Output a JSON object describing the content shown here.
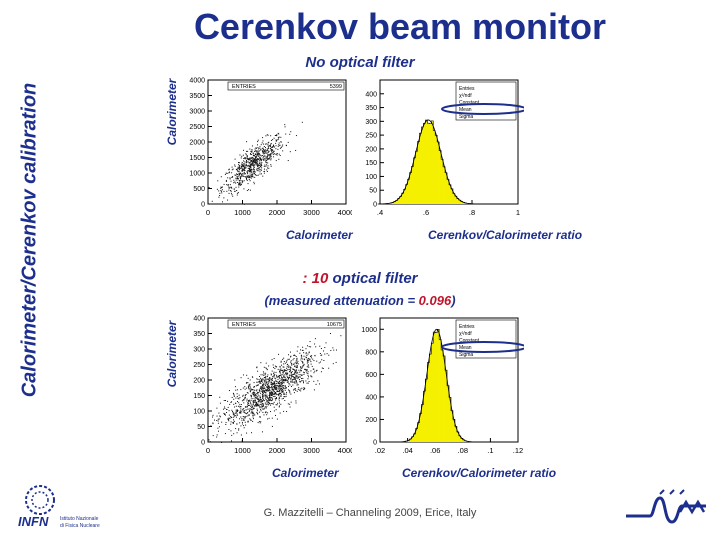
{
  "title": "Cerenkov beam monitor",
  "side_title": "Calorimeter/Cerenkov calibration",
  "top_section": {
    "title": "No optical filter",
    "ylabel": "Calorimeter",
    "xlabel_left": "Calorimeter",
    "xlabel_right": "Cerenkov/Calorimeter ratio",
    "scatter_box": {
      "entries_label": "ENTRIES",
      "entries_value": "5399"
    },
    "hist_box": [
      "Entries",
      "χ²/ndf",
      "Constant",
      "Mean",
      "Sigma"
    ]
  },
  "bottom_section": {
    "title_prefix": ": 10",
    "title_rest": " optical filter",
    "measured_prefix": "(measured attenuation = ",
    "measured_value": "0.096",
    "measured_suffix": ")",
    "ylabel": "Calorimeter",
    "xlabel_left": "Calorimeter",
    "xlabel_right": "Cerenkov/Calorimeter ratio",
    "scatter_box": {
      "entries_label": "ENTRIES",
      "entries_value": "10675"
    },
    "hist_box": [
      "Entries",
      "χ²/ndf",
      "Constant",
      "Mean",
      "Sigma"
    ]
  },
  "footer": "G. Mazzitelli – Channeling 2009, Erice, Italy",
  "logo": {
    "name": "INFN",
    "line1": "Istituto Nazionale",
    "line2": "di Fisica Nucleare"
  },
  "colors": {
    "title": "#1d2f8c",
    "accent_red": "#c0142b",
    "hist_fill": "#f5f000"
  },
  "chart_data": [
    {
      "type": "scatter",
      "section": "top",
      "xlim": [
        0,
        4000
      ],
      "ylim": [
        0,
        4000
      ],
      "xticks": [
        0,
        1000,
        2000,
        3000,
        4000
      ],
      "yticks": [
        0,
        500,
        1000,
        1500,
        2000,
        2500,
        3000,
        3500,
        4000
      ],
      "cluster_center": [
        1300,
        1300
      ],
      "cluster_spread": [
        450,
        450
      ],
      "points": 700,
      "stat_box_entries": "5399"
    },
    {
      "type": "bar",
      "section": "top",
      "xlim": [
        0.4,
        1.0
      ],
      "ylim": [
        0,
        450
      ],
      "xticks": [
        0.4,
        0.6,
        0.8,
        1.0
      ],
      "yticks": [
        0,
        50,
        100,
        150,
        200,
        250,
        300,
        350,
        400
      ],
      "gauss_mean": 0.61,
      "gauss_sigma": 0.055,
      "gauss_peak": 305
    },
    {
      "type": "scatter",
      "section": "bottom",
      "xlim": [
        0,
        4000
      ],
      "ylim": [
        0,
        400
      ],
      "xticks": [
        0,
        1000,
        2000,
        3000,
        4000
      ],
      "yticks": [
        0,
        50,
        100,
        150,
        200,
        250,
        300,
        350,
        400
      ],
      "cluster_center": [
        1800,
        170
      ],
      "cluster_spread": [
        700,
        60
      ],
      "points": 1300,
      "stat_box_entries": "10675"
    },
    {
      "type": "bar",
      "section": "bottom",
      "xlim": [
        0.02,
        0.12
      ],
      "ylim": [
        0,
        1100
      ],
      "xticks": [
        0.02,
        0.04,
        0.06,
        0.08,
        0.1,
        0.12
      ],
      "yticks": [
        0,
        200,
        400,
        600,
        800,
        1000
      ],
      "gauss_mean": 0.061,
      "gauss_sigma": 0.007,
      "gauss_peak": 1000
    }
  ]
}
